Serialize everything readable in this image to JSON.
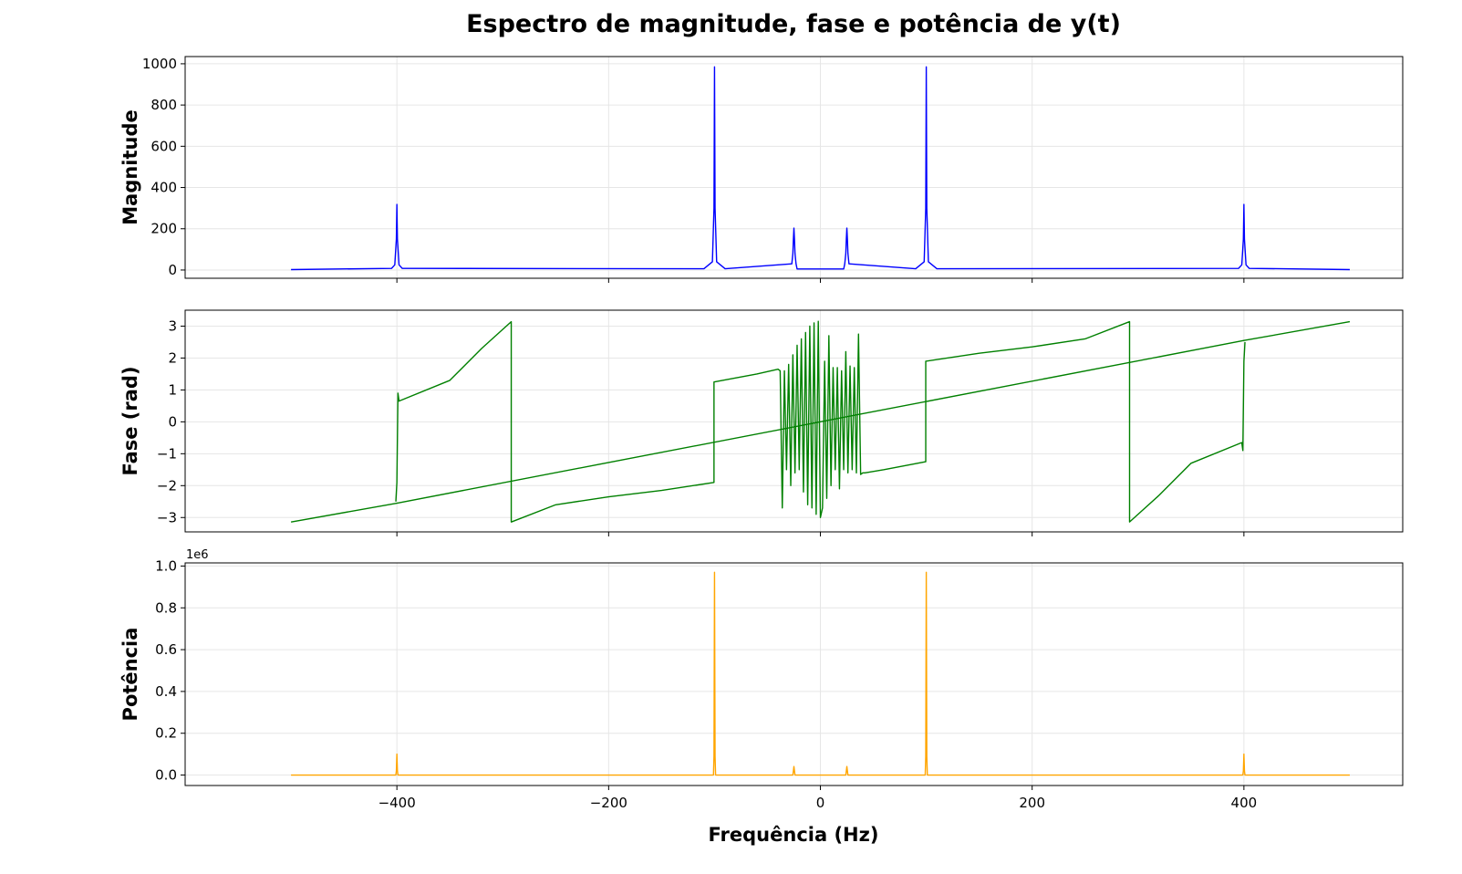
{
  "chart_data": {
    "type": "line",
    "title": "Espectro de magnitude, fase e potência de y(t)",
    "xlabel": "Frequência (Hz)",
    "xlim": [
      -600,
      550
    ],
    "xticks": [
      -400,
      -200,
      0,
      200,
      400
    ],
    "xtick_labels": [
      "−400",
      "−200",
      "0",
      "200",
      "400"
    ],
    "grid": true,
    "panels": [
      {
        "id": "magnitude",
        "ylabel": "Magnitude",
        "ylim": [
          -40,
          1035
        ],
        "yticks": [
          0,
          200,
          400,
          600,
          800,
          1000
        ],
        "ytick_labels": [
          "0",
          "200",
          "400",
          "600",
          "800",
          "1000"
        ],
        "offset_text": "",
        "color": "#0000ff",
        "series": [
          {
            "x": [
              -500,
              -405,
              -402,
              -400.5,
              -400,
              -399.5,
              -398,
              -395,
              -110,
              -102,
              -100.5,
              -100,
              -99.5,
              -98,
              -90,
              -27,
              -26,
              -25.5,
              -25,
              -24.5,
              -24,
              -23,
              -22,
              22,
              23,
              24,
              24.5,
              25,
              25.5,
              26,
              27,
              90,
              98,
              99.5,
              100,
              100.5,
              102,
              110,
              395,
              398,
              399.5,
              400,
              400.5,
              402,
              405,
              500
            ],
            "y": [
              2,
              8,
              25,
              150,
              318,
              150,
              25,
              8,
              6,
              40,
              300,
              985,
              300,
              40,
              6,
              30,
              80,
              150,
              203,
              150,
              80,
              30,
              5,
              5,
              30,
              80,
              150,
              203,
              150,
              80,
              30,
              6,
              40,
              300,
              985,
              300,
              40,
              6,
              8,
              25,
              150,
              318,
              150,
              25,
              8,
              2
            ]
          }
        ]
      },
      {
        "id": "fase",
        "ylabel": "Fase (rad)",
        "ylim": [
          -3.45,
          3.5
        ],
        "yticks": [
          -3,
          -2,
          -1,
          0,
          1,
          2,
          3
        ],
        "ytick_labels": [
          "−3",
          "−2",
          "−1",
          "0",
          "1",
          "2",
          "3"
        ],
        "offset_text": "",
        "color": "#008000",
        "series": [
          {
            "x": [
              -500,
              -400,
              0,
              400,
              500
            ],
            "y": [
              -3.14,
              -2.55,
              0.0,
              2.55,
              3.14
            ]
          },
          {
            "x": [
              -401,
              -400,
              -399,
              -398,
              -350,
              -320,
              -300,
              -292,
              -292,
              -250,
              -200,
              -150,
              -100.5,
              -100.5,
              -60,
              -40,
              -38,
              -36,
              -34,
              -32,
              -30,
              -28,
              -26,
              -24,
              -22,
              -20,
              -18,
              -16,
              -14,
              -12,
              -10,
              -8,
              -6,
              -4,
              -2,
              0,
              2,
              4,
              6,
              8,
              10,
              12,
              14,
              16,
              18,
              20,
              22,
              24,
              26,
              28,
              30,
              32,
              34,
              36,
              38,
              40,
              42,
              60,
              99.5,
              99.5,
              150,
              200,
              250,
              292,
              292,
              300,
              320,
              350,
              398,
              399,
              400,
              401
            ],
            "y": [
              -2.5,
              -1.9,
              0.9,
              0.65,
              1.3,
              2.3,
              2.9,
              3.14,
              -3.14,
              -2.6,
              -2.35,
              -2.15,
              -1.9,
              1.25,
              1.5,
              1.65,
              1.6,
              -2.7,
              1.6,
              -1.5,
              1.8,
              -2.0,
              2.1,
              -1.6,
              2.4,
              -1.5,
              2.6,
              -2.2,
              2.8,
              -2.6,
              3.0,
              -2.7,
              3.1,
              -2.9,
              3.15,
              -3.0,
              -2.7,
              1.9,
              -2.4,
              2.7,
              -2.0,
              1.7,
              -1.5,
              1.7,
              -2.1,
              1.6,
              -1.5,
              2.2,
              -1.6,
              1.75,
              -1.5,
              1.7,
              -1.6,
              2.75,
              -1.65,
              -1.6,
              -1.6,
              -1.5,
              -1.25,
              1.9,
              2.15,
              2.35,
              2.6,
              3.14,
              -3.14,
              -2.9,
              -2.3,
              -1.3,
              -0.65,
              -0.9,
              1.9,
              2.5
            ]
          }
        ]
      },
      {
        "id": "potencia",
        "ylabel": "Potência",
        "ylim": [
          -0.05,
          1.015
        ],
        "yticks": [
          0,
          0.2,
          0.4,
          0.6,
          0.8,
          1.0
        ],
        "ytick_labels": [
          "0.0",
          "0.2",
          "0.4",
          "0.6",
          "0.8",
          "1.0"
        ],
        "offset_text": "1e6",
        "color": "#ffa500",
        "series": [
          {
            "x": [
              -500,
              -401,
              -400.5,
              -400,
              -399.5,
              -399,
              -101,
              -100.5,
              -100,
              -99.5,
              -99,
              -26,
              -25.5,
              -25,
              -24.5,
              -24,
              24,
              24.5,
              25,
              25.5,
              26,
              99,
              99.5,
              100,
              100.5,
              101,
              399,
              399.5,
              400,
              400.5,
              401,
              500
            ],
            "y": [
              0,
              0,
              0.02,
              0.1,
              0.02,
              0,
              0,
              0.09,
              0.97,
              0.09,
              0,
              0,
              0.02,
              0.041,
              0.02,
              0,
              0,
              0.02,
              0.041,
              0.02,
              0,
              0,
              0.09,
              0.97,
              0.09,
              0,
              0,
              0.02,
              0.1,
              0.02,
              0,
              0
            ]
          }
        ]
      }
    ]
  }
}
